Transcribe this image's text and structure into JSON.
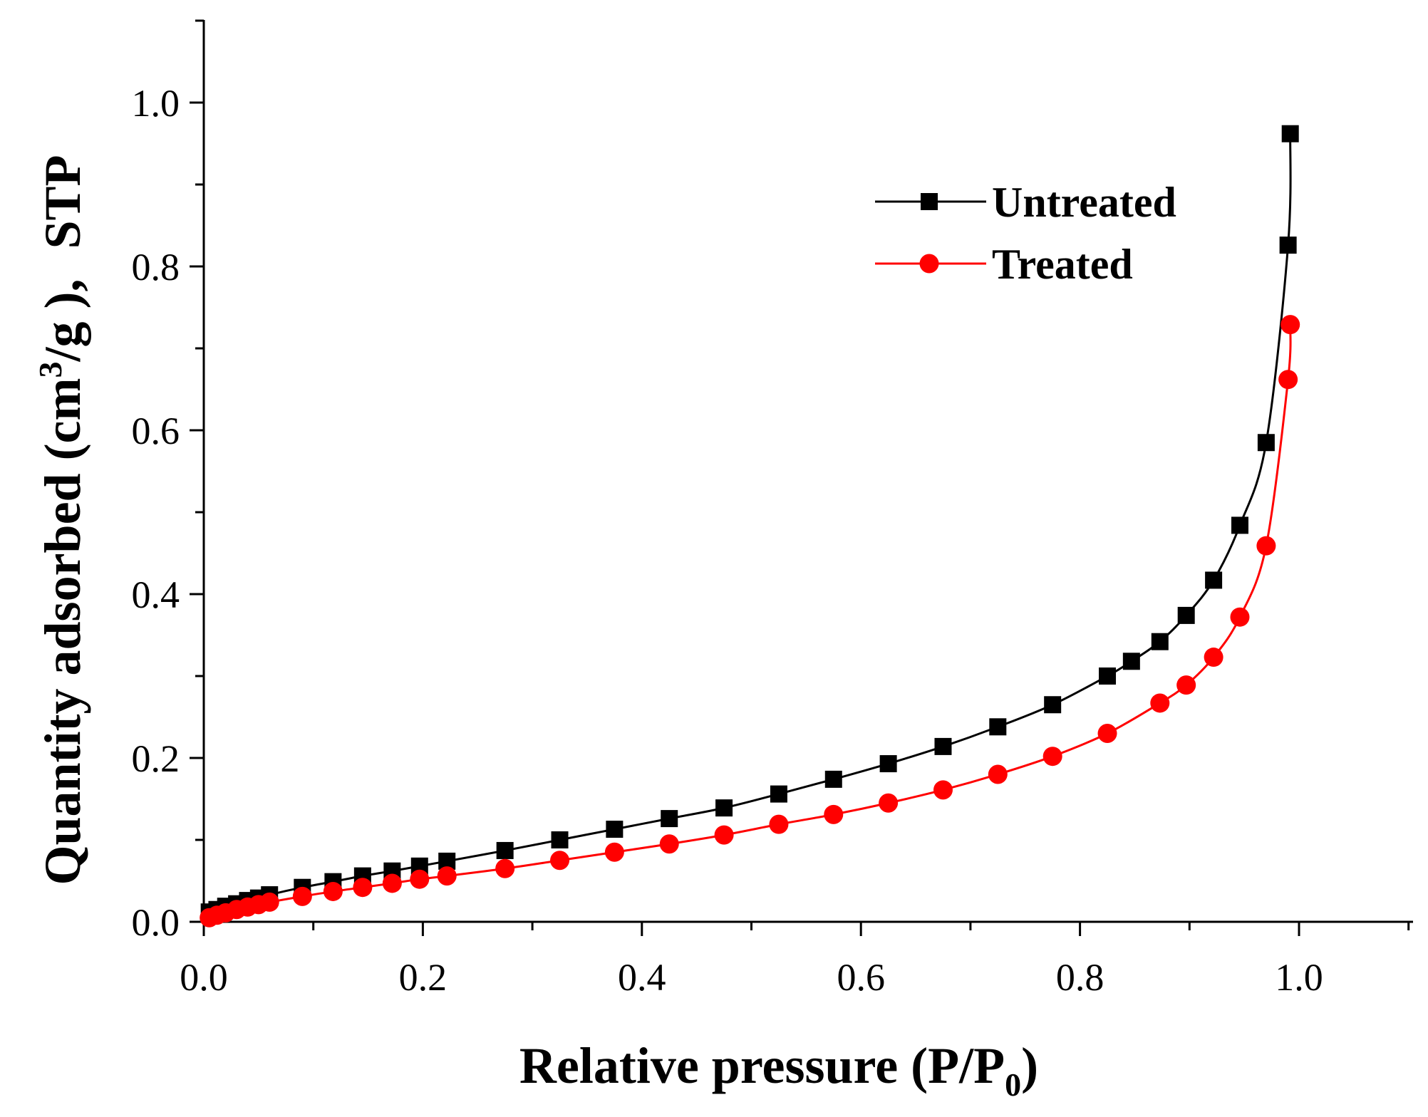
{
  "chart_data": {
    "type": "line",
    "title": "",
    "xlabel_parts": [
      "Relative pressure (P/P",
      "0",
      ")"
    ],
    "ylabel_parts": [
      "Quantity adsorbed (cm",
      "3",
      "/g ), ",
      "STP"
    ],
    "xlim": [
      0.0,
      1.1
    ],
    "ylim": [
      0.0,
      1.1
    ],
    "xticks": [
      0.0,
      0.2,
      0.4,
      0.6,
      0.8,
      1.0
    ],
    "yticks": [
      0.0,
      0.2,
      0.4,
      0.6,
      0.8,
      1.0
    ],
    "xtick_labels": [
      "0.0",
      "0.2",
      "0.4",
      "0.6",
      "0.8",
      "1.0"
    ],
    "ytick_labels": [
      "0.0",
      "0.2",
      "0.4",
      "0.6",
      "0.8",
      "1.0"
    ],
    "x_minor_step": 0.1,
    "y_minor_step": 0.1,
    "grid": false,
    "legend_position": "top-right",
    "series": [
      {
        "name": "Untreated",
        "color": "#000000",
        "marker": "square",
        "x": [
          0.005,
          0.012,
          0.02,
          0.03,
          0.04,
          0.05,
          0.06,
          0.09,
          0.118,
          0.145,
          0.172,
          0.197,
          0.222,
          0.275,
          0.325,
          0.375,
          0.425,
          0.475,
          0.525,
          0.575,
          0.625,
          0.675,
          0.725,
          0.775,
          0.825,
          0.847,
          0.873,
          0.897,
          0.922,
          0.946,
          0.97,
          0.99,
          0.992
        ],
        "y": [
          0.012,
          0.015,
          0.019,
          0.022,
          0.026,
          0.029,
          0.033,
          0.042,
          0.049,
          0.056,
          0.062,
          0.068,
          0.074,
          0.087,
          0.1,
          0.113,
          0.126,
          0.139,
          0.156,
          0.174,
          0.193,
          0.214,
          0.238,
          0.265,
          0.3,
          0.318,
          0.342,
          0.374,
          0.417,
          0.484,
          0.585,
          0.826,
          0.962
        ]
      },
      {
        "name": "Treated",
        "color": "#ff0000",
        "marker": "circle",
        "x": [
          0.005,
          0.012,
          0.02,
          0.03,
          0.04,
          0.05,
          0.06,
          0.09,
          0.118,
          0.145,
          0.172,
          0.197,
          0.222,
          0.275,
          0.325,
          0.375,
          0.425,
          0.475,
          0.525,
          0.575,
          0.625,
          0.675,
          0.725,
          0.775,
          0.825,
          0.873,
          0.897,
          0.922,
          0.946,
          0.97,
          0.99,
          0.992
        ],
        "y": [
          0.005,
          0.008,
          0.011,
          0.015,
          0.018,
          0.021,
          0.024,
          0.031,
          0.037,
          0.042,
          0.047,
          0.052,
          0.056,
          0.065,
          0.075,
          0.085,
          0.095,
          0.106,
          0.119,
          0.131,
          0.145,
          0.161,
          0.18,
          0.202,
          0.23,
          0.267,
          0.289,
          0.323,
          0.372,
          0.459,
          0.662,
          0.729
        ]
      }
    ]
  }
}
